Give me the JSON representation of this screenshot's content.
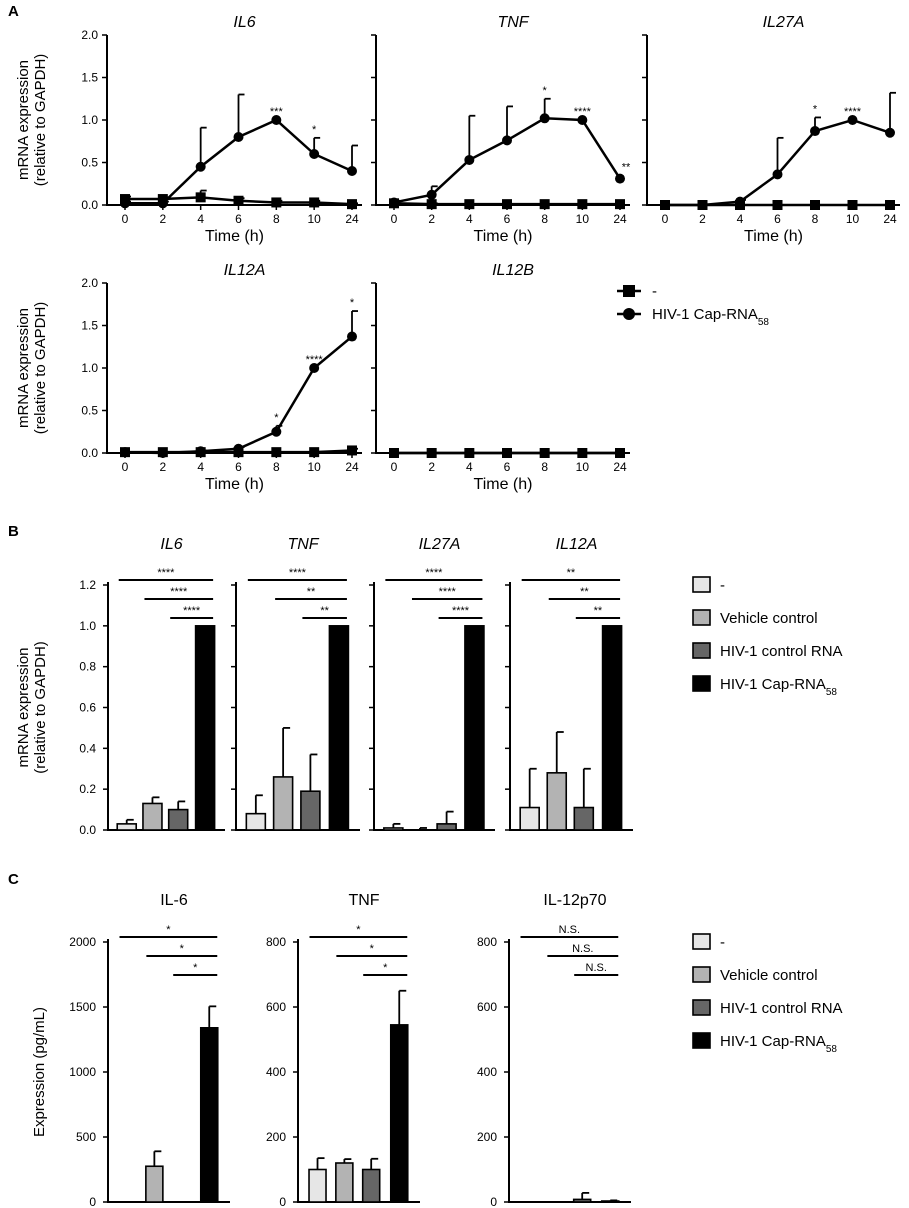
{
  "panel_labels": [
    "A",
    "B",
    "C"
  ],
  "legends": {
    "A": [
      {
        "label": "-",
        "marker": "square-icon"
      },
      {
        "label": "HIV-1 Cap-RNA",
        "sub": "58",
        "marker": "circle-icon"
      }
    ],
    "B": [
      {
        "label": "-",
        "color": "#e6e6e6"
      },
      {
        "label": "Vehicle control",
        "color": "#b3b3b3"
      },
      {
        "label": "HIV-1 control RNA",
        "color": "#666666"
      },
      {
        "label": "HIV-1 Cap-RNA",
        "sub": "58",
        "color": "#000000"
      }
    ],
    "C": [
      {
        "label": "-",
        "color": "#e6e6e6"
      },
      {
        "label": "Vehicle control",
        "color": "#b3b3b3"
      },
      {
        "label": "HIV-1 control RNA",
        "color": "#666666"
      },
      {
        "label": "HIV-1 Cap-RNA",
        "sub": "58",
        "color": "#000000"
      }
    ]
  },
  "chart_data": [
    {
      "panel": "A",
      "type": "line",
      "title": "IL6",
      "italic": true,
      "xlabel": "Time (h)",
      "ylabel": [
        "mRNA expression",
        "(relative to GAPDH)"
      ],
      "categories": [
        "0",
        "2",
        "4",
        "6",
        "8",
        "10",
        "24"
      ],
      "ylim": [
        0,
        2.0
      ],
      "yticks": [
        "0.0",
        "0.5",
        "1.0",
        "1.5",
        "2.0"
      ],
      "series": [
        {
          "name": "-",
          "marker": "square",
          "values": [
            0.07,
            0.07,
            0.09,
            0.05,
            0.03,
            0.03,
            0.01
          ],
          "err": [
            0.03,
            0.02,
            0.08,
            0.03,
            0.02,
            0.02,
            0.01
          ]
        },
        {
          "name": "HIV-1 Cap-RNA58",
          "marker": "circle",
          "values": [
            0.02,
            0.02,
            0.45,
            0.8,
            1.0,
            0.6,
            0.4
          ],
          "err": [
            0.02,
            0.02,
            0.46,
            0.5,
            0,
            0.19,
            0.3
          ]
        }
      ],
      "annotations": [
        {
          "x": "8",
          "text": "***"
        },
        {
          "x": "10",
          "text": "*"
        }
      ]
    },
    {
      "panel": "A",
      "type": "line",
      "title": "TNF",
      "italic": true,
      "xlabel": "Time (h)",
      "categories": [
        "0",
        "2",
        "4",
        "6",
        "8",
        "10",
        "24"
      ],
      "ylim": [
        0,
        2.0
      ],
      "series": [
        {
          "name": "-",
          "marker": "square",
          "values": [
            0.02,
            0.01,
            0.01,
            0.01,
            0.01,
            0.01,
            0.01
          ],
          "err": [
            0.01,
            0.01,
            0,
            0,
            0,
            0,
            0
          ]
        },
        {
          "name": "HIV-1 Cap-RNA58",
          "marker": "circle",
          "values": [
            0.03,
            0.12,
            0.53,
            0.76,
            1.02,
            1.0,
            0.31
          ],
          "err": [
            0.02,
            0.1,
            0.52,
            0.4,
            0.23,
            0,
            0
          ]
        }
      ],
      "annotations": [
        {
          "x": "8",
          "text": "*"
        },
        {
          "x": "10",
          "text": "****"
        },
        {
          "x": "24",
          "text": "**"
        }
      ]
    },
    {
      "panel": "A",
      "type": "line",
      "title": "IL27A",
      "italic": true,
      "xlabel": "Time (h)",
      "categories": [
        "0",
        "2",
        "4",
        "6",
        "8",
        "10",
        "24"
      ],
      "ylim": [
        0,
        2.0
      ],
      "series": [
        {
          "name": "-",
          "marker": "square",
          "values": [
            0.0,
            0.0,
            0.0,
            0.0,
            0.0,
            0.0,
            0.0
          ],
          "err": [
            0,
            0,
            0,
            0,
            0,
            0,
            0
          ]
        },
        {
          "name": "HIV-1 Cap-RNA58",
          "marker": "circle",
          "values": [
            0.0,
            0.0,
            0.04,
            0.36,
            0.87,
            1.0,
            0.85
          ],
          "err": [
            0,
            0,
            0.02,
            0.43,
            0.16,
            0,
            0.47
          ]
        }
      ],
      "annotations": [
        {
          "x": "8",
          "text": "*"
        },
        {
          "x": "10",
          "text": "****"
        }
      ]
    },
    {
      "panel": "A",
      "type": "line",
      "title": "IL12A",
      "italic": true,
      "xlabel": "Time (h)",
      "ylabel": [
        "mRNA expression",
        "(relative to GAPDH)"
      ],
      "categories": [
        "0",
        "2",
        "4",
        "6",
        "8",
        "10",
        "24"
      ],
      "ylim": [
        0,
        2.0
      ],
      "yticks": [
        "0.0",
        "0.5",
        "1.0",
        "1.5",
        "2.0"
      ],
      "series": [
        {
          "name": "-",
          "marker": "square",
          "values": [
            0.01,
            0.01,
            0.01,
            0.01,
            0.01,
            0.01,
            0.03
          ],
          "err": [
            0,
            0,
            0,
            0,
            0,
            0,
            0.02
          ]
        },
        {
          "name": "HIV-1 Cap-RNA58",
          "marker": "circle",
          "values": [
            0.01,
            0.0,
            0.02,
            0.05,
            0.25,
            1.0,
            1.37
          ],
          "err": [
            0,
            0,
            0.01,
            0.02,
            0.07,
            0,
            0.3
          ]
        }
      ],
      "annotations": [
        {
          "x": "8",
          "text": "*"
        },
        {
          "x": "10",
          "text": "****"
        },
        {
          "x": "24",
          "text": "*"
        }
      ]
    },
    {
      "panel": "A",
      "type": "line",
      "title": "IL12B",
      "italic": true,
      "xlabel": "Time (h)",
      "categories": [
        "0",
        "2",
        "4",
        "6",
        "8",
        "10",
        "24"
      ],
      "ylim": [
        0,
        2.0
      ],
      "series": [
        {
          "name": "-",
          "marker": "square",
          "values": [
            0.0,
            0.0,
            0.0,
            0.0,
            0.0,
            0.0,
            0.0
          ],
          "err": [
            0,
            0,
            0,
            0,
            0,
            0,
            0
          ]
        },
        {
          "name": "HIV-1 Cap-RNA58",
          "marker": "circle",
          "values": [
            0.0,
            0.0,
            0.0,
            0.0,
            0.0,
            0.0,
            0.0
          ],
          "err": [
            0,
            0,
            0,
            0,
            0,
            0,
            0
          ]
        }
      ],
      "annotations": []
    },
    {
      "panel": "B",
      "type": "bar",
      "title": "IL6",
      "italic": true,
      "ylabel": [
        "mRNA expression",
        "(relative to GAPDH)"
      ],
      "categories": [
        "-",
        "Vehicle control",
        "HIV-1 control RNA",
        "HIV-1 Cap-RNA58"
      ],
      "values": [
        0.03,
        0.13,
        0.1,
        1.0
      ],
      "err": [
        0.02,
        0.03,
        0.04,
        0
      ],
      "ylim": [
        0,
        1.2
      ],
      "yticks": [
        "0.0",
        "0.2",
        "0.4",
        "0.6",
        "0.8",
        "1.0",
        "1.2"
      ],
      "brackets": [
        {
          "from": 0,
          "text": "****"
        },
        {
          "from": 1,
          "text": "****"
        },
        {
          "from": 2,
          "text": "****"
        }
      ]
    },
    {
      "panel": "B",
      "type": "bar",
      "title": "TNF",
      "italic": true,
      "categories": [
        "-",
        "Vehicle control",
        "HIV-1 control RNA",
        "HIV-1 Cap-RNA58"
      ],
      "values": [
        0.08,
        0.26,
        0.19,
        1.0
      ],
      "err": [
        0.09,
        0.24,
        0.18,
        0
      ],
      "ylim": [
        0,
        1.2
      ],
      "brackets": [
        {
          "from": 0,
          "text": "****"
        },
        {
          "from": 1,
          "text": "**"
        },
        {
          "from": 2,
          "text": "**"
        }
      ]
    },
    {
      "panel": "B",
      "type": "bar",
      "title": "IL27A",
      "italic": true,
      "categories": [
        "-",
        "Vehicle control",
        "HIV-1 control RNA",
        "HIV-1 Cap-RNA58"
      ],
      "values": [
        0.01,
        0.0,
        0.03,
        1.0
      ],
      "err": [
        0.02,
        0.01,
        0.06,
        0
      ],
      "ylim": [
        0,
        1.2
      ],
      "brackets": [
        {
          "from": 0,
          "text": "****"
        },
        {
          "from": 1,
          "text": "****"
        },
        {
          "from": 2,
          "text": "****"
        }
      ]
    },
    {
      "panel": "B",
      "type": "bar",
      "title": "IL12A",
      "italic": true,
      "categories": [
        "-",
        "Vehicle control",
        "HIV-1 control RNA",
        "HIV-1 Cap-RNA58"
      ],
      "values": [
        0.11,
        0.28,
        0.11,
        1.0
      ],
      "err": [
        0.19,
        0.2,
        0.19,
        0
      ],
      "ylim": [
        0,
        1.2
      ],
      "brackets": [
        {
          "from": 0,
          "text": "**"
        },
        {
          "from": 1,
          "text": "**"
        },
        {
          "from": 2,
          "text": "**"
        }
      ]
    },
    {
      "panel": "C",
      "type": "bar",
      "title": "IL-6",
      "italic": false,
      "ylabel": [
        "Expression (pg/mL)"
      ],
      "categories": [
        "-",
        "Vehicle control",
        "HIV-1 control RNA",
        "HIV-1 Cap-RNA58"
      ],
      "values": [
        0,
        275,
        0,
        1340
      ],
      "err": [
        0,
        115,
        0,
        165
      ],
      "ylim": [
        0,
        2000
      ],
      "yticks": [
        "0",
        "500",
        "1000",
        "1500",
        "2000"
      ],
      "brackets": [
        {
          "from": 0,
          "text": "*"
        },
        {
          "from": 1,
          "text": "*"
        },
        {
          "from": 2,
          "text": "*"
        }
      ]
    },
    {
      "panel": "C",
      "type": "bar",
      "title": "TNF",
      "italic": false,
      "categories": [
        "-",
        "Vehicle control",
        "HIV-1 control RNA",
        "HIV-1 Cap-RNA58"
      ],
      "values": [
        100,
        120,
        100,
        545
      ],
      "err": [
        35,
        12,
        33,
        105
      ],
      "ylim": [
        0,
        800
      ],
      "yticks": [
        "0",
        "200",
        "400",
        "600",
        "800"
      ],
      "brackets": [
        {
          "from": 0,
          "text": "*"
        },
        {
          "from": 1,
          "text": "*"
        },
        {
          "from": 2,
          "text": "*"
        }
      ]
    },
    {
      "panel": "C",
      "type": "bar",
      "title": "IL-12p70",
      "italic": false,
      "categories": [
        "-",
        "Vehicle control",
        "HIV-1 control RNA",
        "HIV-1 Cap-RNA58"
      ],
      "values": [
        0,
        0,
        8,
        3
      ],
      "err": [
        0,
        0,
        20,
        2
      ],
      "ylim": [
        0,
        800
      ],
      "yticks": [
        "0",
        "200",
        "400",
        "600",
        "800"
      ],
      "brackets": [
        {
          "from": 0,
          "text": "N.S."
        },
        {
          "from": 1,
          "text": "N.S."
        },
        {
          "from": 2,
          "text": "N.S."
        }
      ]
    }
  ]
}
